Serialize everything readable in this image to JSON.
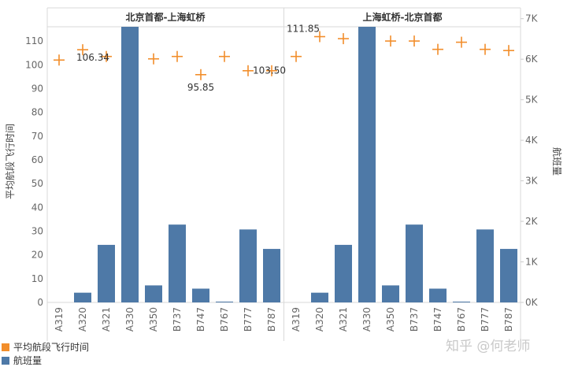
{
  "chart_data": {
    "type": "bar+scatter",
    "panels": [
      {
        "title": "北京首都-上海虹桥",
        "categories": [
          "A319",
          "A320",
          "A321",
          "A330",
          "A350",
          "B737",
          "B747",
          "B767",
          "B777",
          "B787"
        ],
        "flights": [
          0,
          240,
          1420,
          6800,
          420,
          1920,
          340,
          20,
          1800,
          1320
        ],
        "avg_flight_time": [
          102,
          106.34,
          103.5,
          null,
          102.5,
          103.5,
          95.85,
          103.5,
          97.5,
          97.5
        ]
      },
      {
        "title": "上海虹桥-北京首都",
        "categories": [
          "A319",
          "A320",
          "A321",
          "A330",
          "A350",
          "B737",
          "B747",
          "B767",
          "B777",
          "B787"
        ],
        "flights": [
          0,
          240,
          1420,
          6800,
          420,
          1920,
          340,
          20,
          1800,
          1320
        ],
        "avg_flight_time": [
          103.5,
          111.85,
          111.0,
          null,
          110.0,
          110.0,
          106.5,
          109.5,
          106.5,
          106.0
        ]
      }
    ],
    "data_labels": [
      {
        "panel": 0,
        "index": 1,
        "text": "106.34"
      },
      {
        "panel": 0,
        "index": 6,
        "text": "95.85"
      },
      {
        "panel": 1,
        "index": 0,
        "text": "103.50"
      },
      {
        "panel": 1,
        "index": 1,
        "text": "111.85"
      }
    ],
    "y_left": {
      "label": "平均航段飞行时间",
      "ticks": [
        "0",
        "10",
        "20",
        "30",
        "40",
        "50",
        "60",
        "70",
        "80",
        "90",
        "100",
        "110"
      ],
      "ylim": [
        0,
        116
      ]
    },
    "y_right": {
      "label": "航班量",
      "ticks": [
        "0K",
        "1K",
        "2K",
        "3K",
        "4K",
        "5K",
        "6K",
        "7K"
      ],
      "ylim": [
        0,
        6800
      ]
    },
    "legend": [
      {
        "label": "平均航段飞行时间",
        "color": "#f28e2b"
      },
      {
        "label": "航班量",
        "color": "#4e79a7"
      }
    ],
    "colors": {
      "bar": "#4e79a7",
      "marker": "#f28e2b"
    }
  },
  "watermark": "知乎 @何老师"
}
